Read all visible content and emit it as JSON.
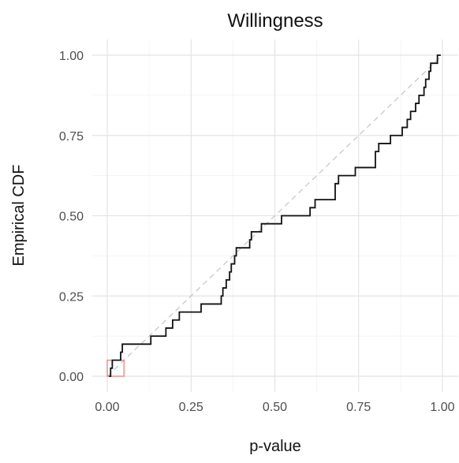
{
  "chart_data": {
    "type": "line",
    "title": "Willingness",
    "xlabel": "p-value",
    "ylabel": "Empirical CDF",
    "xlim": [
      0,
      1
    ],
    "ylim": [
      0,
      1
    ],
    "x_ticks": [
      "0.00",
      "0.25",
      "0.50",
      "0.75",
      "1.00"
    ],
    "y_ticks": [
      "0.00",
      "0.25",
      "0.50",
      "0.75",
      "1.00"
    ],
    "grid": true,
    "legend": "none",
    "reference_line": {
      "from": [
        0,
        0
      ],
      "to": [
        1,
        1
      ],
      "style": "dashed",
      "color": "#c8c8c8"
    },
    "highlight_box": {
      "x": [
        0,
        0.05
      ],
      "y": [
        0,
        0.05
      ],
      "color": "#e8827a"
    },
    "series": [
      {
        "color": "#111111",
        "step": true,
        "x": [
          0.005,
          0.01,
          0.015,
          0.02,
          0.04,
          0.045,
          0.13,
          0.175,
          0.195,
          0.215,
          0.28,
          0.34,
          0.345,
          0.355,
          0.365,
          0.37,
          0.38,
          0.385,
          0.39,
          0.425,
          0.43,
          0.46,
          0.52,
          0.605,
          0.615,
          0.62,
          0.68,
          0.69,
          0.705,
          0.74,
          0.79,
          0.8,
          0.81,
          0.845,
          0.875,
          0.88,
          0.895,
          0.905,
          0.92,
          0.93,
          0.945,
          0.95,
          0.96,
          0.965,
          0.97,
          0.985,
          0.995
        ],
        "y": [
          0.0,
          0.025,
          0.05,
          0.05,
          0.075,
          0.1,
          0.125,
          0.15,
          0.175,
          0.2,
          0.225,
          0.25,
          0.275,
          0.3,
          0.325,
          0.35,
          0.375,
          0.4,
          0.4,
          0.425,
          0.45,
          0.475,
          0.5,
          0.525,
          0.525,
          0.55,
          0.6,
          0.625,
          0.625,
          0.65,
          0.65,
          0.7,
          0.725,
          0.75,
          0.75,
          0.775,
          0.8,
          0.825,
          0.85,
          0.875,
          0.9,
          0.925,
          0.95,
          0.975,
          0.975,
          1.0,
          1.0
        ]
      }
    ]
  }
}
